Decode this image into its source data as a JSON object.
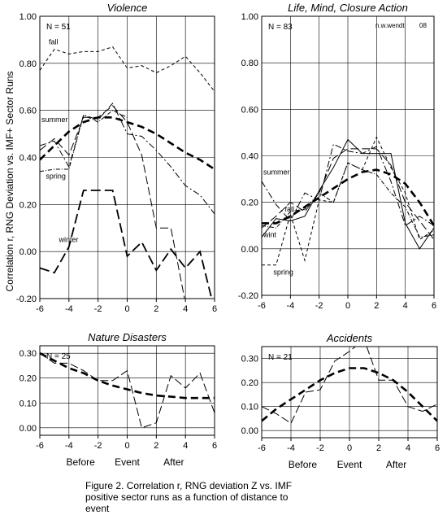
{
  "figure": {
    "ylabel": "Correlation r, RNG Deviation vs. IMF+ Sector Runs",
    "caption": "Figure 2. Correlation  r, RNG deviation Z vs. IMF\npositive sector runs as a function of distance to\nevent"
  },
  "chart_data": [
    {
      "id": "violence",
      "type": "line",
      "title": "Violence",
      "n_label": "N = 51",
      "xlabel": "",
      "ylim": [
        -0.2,
        1.0
      ],
      "xlim": [
        -6,
        6
      ],
      "yticks": [
        "-0.20",
        "0.00",
        "0.20",
        "0.40",
        "0.60",
        "0.80",
        "1.00"
      ],
      "yticks_values": [
        -0.2,
        0.0,
        0.2,
        0.4,
        0.6,
        0.8,
        1.0
      ],
      "xticks": [
        "-6",
        "-4",
        "-2",
        "0",
        "2",
        "4",
        "6"
      ],
      "xticks_values": [
        -6,
        -4,
        -2,
        0,
        2,
        4,
        6
      ],
      "grid": true,
      "annotations": [
        {
          "text": "fall",
          "x": -5.5,
          "y": 0.88
        },
        {
          "text": "summer",
          "x": -6.0,
          "y": 0.55
        },
        {
          "text": "spring",
          "x": -5.7,
          "y": 0.31
        },
        {
          "text": "winter",
          "x": -4.8,
          "y": 0.04
        }
      ],
      "series": [
        {
          "style": "short-dash",
          "x": [
            -6,
            -5,
            -4,
            -3,
            -2,
            -1,
            0,
            1,
            2,
            3,
            4,
            5,
            6
          ],
          "y": [
            0.77,
            0.86,
            0.84,
            0.85,
            0.85,
            0.87,
            0.78,
            0.79,
            0.76,
            0.79,
            0.83,
            0.76,
            0.68
          ]
        },
        {
          "style": "dash-dot",
          "x": [
            -6,
            -5,
            -4,
            -3,
            -2,
            -1,
            0,
            1,
            2,
            3,
            4,
            5,
            6
          ],
          "y": [
            0.45,
            0.47,
            0.36,
            0.58,
            0.56,
            0.63,
            0.5,
            0.49,
            0.43,
            0.36,
            0.28,
            0.24,
            0.16
          ]
        },
        {
          "style": "long-dash",
          "x": [
            -6,
            -5,
            -4,
            -3,
            -2,
            -1,
            0,
            1,
            2,
            3,
            4,
            5,
            6
          ],
          "y": [
            0.43,
            0.48,
            0.41,
            0.57,
            0.57,
            0.62,
            0.55,
            0.41,
            0.1,
            0.1,
            -0.22,
            -0.22,
            -0.3
          ]
        },
        {
          "style": "dash-dot-fine",
          "x": [
            -6,
            -5,
            -4,
            -3,
            -2,
            -1,
            0
          ],
          "y": [
            0.34,
            0.35,
            0.35,
            0.58,
            0.55,
            0.6,
            0.57
          ]
        },
        {
          "style": "heavy-dash",
          "x": [
            -6,
            -5,
            -4,
            -3,
            -2,
            -1,
            0,
            1,
            2,
            3,
            4,
            5,
            6
          ],
          "y": [
            -0.07,
            -0.09,
            0.02,
            0.26,
            0.26,
            0.26,
            -0.02,
            0.04,
            -0.08,
            0.01,
            -0.07,
            0.0,
            -0.25
          ]
        },
        {
          "style": "fit",
          "x": [
            -6,
            -5,
            -4,
            -3,
            -2,
            -1,
            0,
            1,
            2,
            3,
            4,
            5,
            6
          ],
          "y": [
            0.39,
            0.45,
            0.51,
            0.55,
            0.57,
            0.57,
            0.55,
            0.53,
            0.5,
            0.46,
            0.42,
            0.39,
            0.35
          ]
        }
      ]
    },
    {
      "id": "life",
      "type": "line",
      "title": "Life, Mind, Closure Action",
      "n_label": "N = 83",
      "credit": "n.w.wendt",
      "credit2": "08",
      "ylim": [
        -0.2,
        1.0
      ],
      "xlim": [
        -6,
        6
      ],
      "yticks": [
        "-0.20",
        "0.00",
        "0.20",
        "0.40",
        "0.60",
        "0.80",
        "1.00"
      ],
      "yticks_values": [
        -0.2,
        0.0,
        0.2,
        0.4,
        0.6,
        0.8,
        1.0
      ],
      "xticks": [
        "-6",
        "-4",
        "-2",
        "0",
        "2",
        "4",
        "6"
      ],
      "xticks_values": [
        -6,
        -4,
        -2,
        0,
        2,
        4,
        6
      ],
      "grid": true,
      "annotations": [
        {
          "text": "summer",
          "x": -6.0,
          "y": 0.32
        },
        {
          "text": "fall",
          "x": -4.5,
          "y": 0.16
        },
        {
          "text": "wint",
          "x": -6.0,
          "y": 0.05
        },
        {
          "text": "spring",
          "x": -5.3,
          "y": -0.11
        }
      ],
      "series": [
        {
          "style": "dash-dot",
          "x": [
            -6,
            -5,
            -4,
            -3,
            -2,
            -1,
            0,
            1,
            2,
            3,
            4,
            5,
            6
          ],
          "y": [
            0.29,
            0.19,
            0.12,
            0.24,
            0.21,
            0.45,
            0.42,
            0.41,
            0.44,
            0.29,
            0.1,
            0.14,
            0.1
          ]
        },
        {
          "style": "long-dash",
          "x": [
            -6,
            -5,
            -4,
            -3,
            -2,
            -1,
            0,
            1,
            2,
            3,
            4,
            5,
            6
          ],
          "y": [
            0.09,
            0.14,
            0.2,
            0.16,
            0.24,
            0.39,
            0.43,
            0.43,
            0.43,
            0.36,
            0.2,
            0.12,
            0.04
          ]
        },
        {
          "style": "solid",
          "x": [
            -6,
            -5,
            -4,
            -3,
            -2,
            -1,
            0,
            1,
            2,
            3,
            4,
            5,
            6
          ],
          "y": [
            0.05,
            0.13,
            0.12,
            0.14,
            0.25,
            0.35,
            0.47,
            0.41,
            0.41,
            0.41,
            0.11,
            0.0,
            0.09
          ]
        },
        {
          "style": "short-dash",
          "x": [
            -6,
            -5,
            -4,
            -3,
            -2,
            -1,
            0,
            1,
            2,
            3,
            4,
            5,
            6
          ],
          "y": [
            -0.07,
            -0.07,
            0.15,
            -0.05,
            0.21,
            0.2,
            0.37,
            0.34,
            0.48,
            0.35,
            0.24,
            0.04,
            0.08
          ]
        },
        {
          "style": "dash-dot-fine",
          "x": [
            -6,
            -5,
            -4,
            -3,
            -2,
            -1,
            0,
            1,
            2,
            3,
            4,
            5,
            6
          ],
          "y": [
            0.1,
            0.09,
            0.16,
            0.17,
            0.24,
            0.2,
            0.37,
            0.34,
            0.32,
            0.24,
            0.18,
            0.05,
            0.06
          ]
        },
        {
          "style": "fit",
          "x": [
            -6,
            -5,
            -4,
            -3,
            -2,
            -1,
            0,
            1,
            2,
            3,
            4,
            5,
            6
          ],
          "y": [
            0.11,
            0.11,
            0.14,
            0.18,
            0.22,
            0.26,
            0.3,
            0.33,
            0.34,
            0.32,
            0.28,
            0.2,
            0.1
          ]
        }
      ]
    },
    {
      "id": "disasters",
      "type": "line",
      "title": "Nature Disasters",
      "n_label": "N = 25",
      "xlabel_parts": [
        "Before",
        "Event",
        "After"
      ],
      "ylim": [
        -0.03,
        0.33
      ],
      "xlim": [
        -6,
        6
      ],
      "yticks": [
        "0.00",
        "0.10",
        "0.20",
        "0.30"
      ],
      "yticks_values": [
        0.0,
        0.1,
        0.2,
        0.3
      ],
      "xticks": [
        "-6",
        "-4",
        "-2",
        "0",
        "2",
        "4",
        "6"
      ],
      "xticks_values": [
        -6,
        -4,
        -2,
        0,
        2,
        4,
        6
      ],
      "grid": true,
      "series": [
        {
          "style": "long-dash",
          "x": [
            -6,
            -5,
            -4,
            -3,
            -2,
            -1,
            0,
            1,
            2,
            3,
            4,
            5,
            6
          ],
          "y": [
            0.3,
            0.26,
            0.26,
            0.23,
            0.19,
            0.19,
            0.23,
            0.0,
            0.02,
            0.21,
            0.16,
            0.22,
            0.06
          ]
        },
        {
          "style": "fit",
          "x": [
            -6,
            -5,
            -4,
            -3,
            -2,
            -1,
            0,
            1,
            2,
            3,
            4,
            5,
            6
          ],
          "y": [
            0.3,
            0.27,
            0.24,
            0.22,
            0.19,
            0.17,
            0.155,
            0.14,
            0.13,
            0.125,
            0.12,
            0.12,
            0.12
          ]
        }
      ]
    },
    {
      "id": "accidents",
      "type": "line",
      "title": "Accidents",
      "n_label": "N = 21",
      "xlabel_parts": [
        "Before",
        "Event",
        "After"
      ],
      "ylim": [
        -0.03,
        0.35
      ],
      "xlim": [
        -6,
        6
      ],
      "yticks": [
        "0.00",
        "0.10",
        "0.20",
        "0.30"
      ],
      "yticks_values": [
        0.0,
        0.1,
        0.2,
        0.3
      ],
      "xticks": [
        "-6",
        "-4",
        "-2",
        "0",
        "2",
        "4",
        "6"
      ],
      "xticks_values": [
        -6,
        -4,
        -2,
        0,
        2,
        4,
        6
      ],
      "grid": true,
      "series": [
        {
          "style": "long-dash",
          "x": [
            -6,
            -5,
            -4,
            -3,
            -2,
            -1,
            0,
            1,
            2,
            3,
            4,
            5,
            6
          ],
          "y": [
            0.1,
            0.07,
            0.03,
            0.16,
            0.17,
            0.29,
            0.33,
            0.38,
            0.21,
            0.21,
            0.1,
            0.08,
            0.11
          ]
        },
        {
          "style": "fit",
          "x": [
            -6,
            -5,
            -4,
            -3,
            -2,
            -1,
            0,
            1,
            2,
            3,
            4,
            5,
            6
          ],
          "y": [
            0.04,
            0.09,
            0.13,
            0.17,
            0.21,
            0.24,
            0.26,
            0.26,
            0.24,
            0.21,
            0.16,
            0.1,
            0.04
          ]
        }
      ]
    }
  ]
}
